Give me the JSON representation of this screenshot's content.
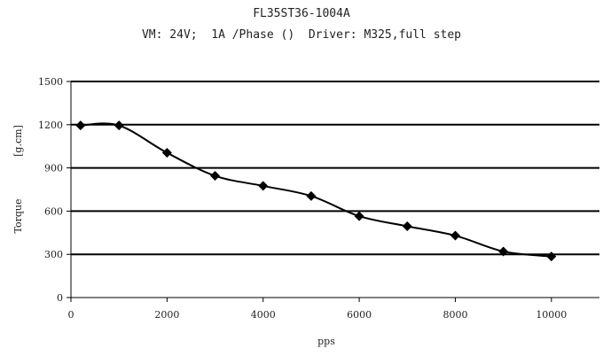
{
  "chart_data": {
    "type": "line",
    "title": "FL35ST36-1004A",
    "subtitle": "VM: 24V;  1A /Phase ()  Driver: M325,full step",
    "xlabel": "pps",
    "ylabel_left": "Torque",
    "ylabel_right": "[g.cm]",
    "xlim": [
      0,
      11000
    ],
    "ylim": [
      0,
      1500
    ],
    "xticks": [
      0,
      2000,
      4000,
      6000,
      8000,
      10000
    ],
    "yticks": [
      0,
      300,
      600,
      900,
      1200,
      1500
    ],
    "grid": "horizontal",
    "series": [
      {
        "color": "#000000",
        "marker": "diamond",
        "x": [
          200,
          1000,
          2000,
          3000,
          4000,
          5000,
          6000,
          7000,
          8000,
          9000,
          10000
        ],
        "y": [
          1195,
          1195,
          1005,
          845,
          775,
          705,
          565,
          495,
          430,
          320,
          285
        ]
      }
    ]
  }
}
